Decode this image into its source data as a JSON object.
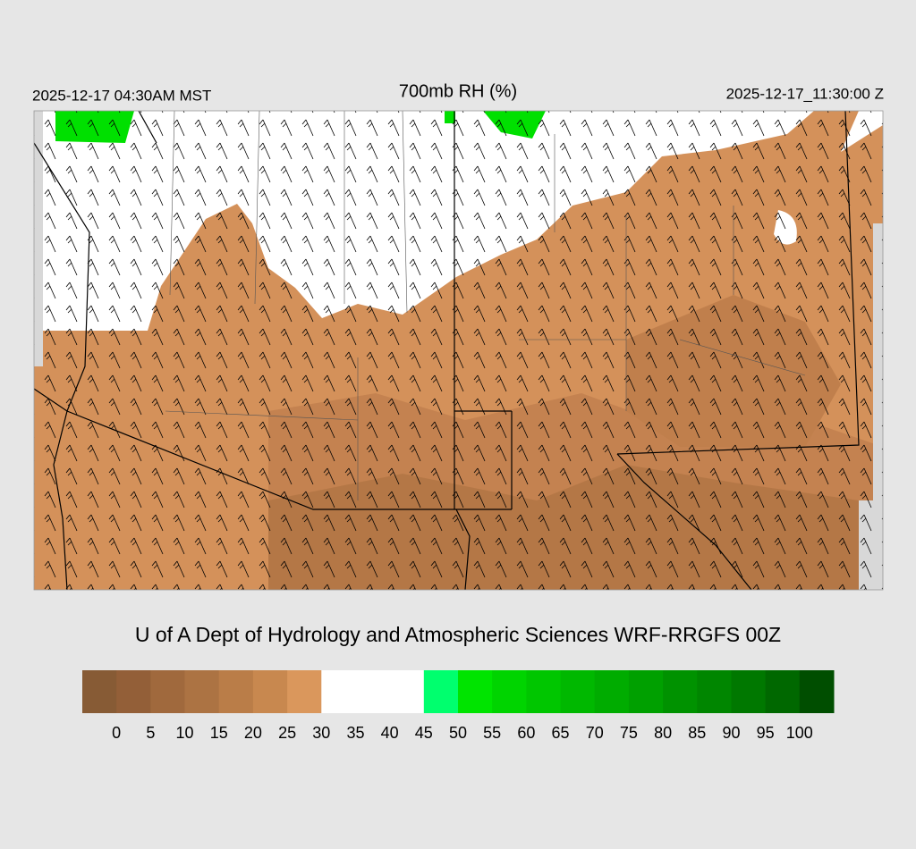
{
  "header": {
    "left": "2025-12-17 04:30AM MST",
    "title": "700mb RH (%)",
    "right": "2025-12-17_11:30:00 Z"
  },
  "credit": "U of A Dept of Hydrology and Atmospheric Sciences WRF-RRGFS 00Z",
  "colorbar": {
    "labels": [
      0,
      5,
      10,
      15,
      20,
      25,
      30,
      35,
      40,
      45,
      50,
      55,
      60,
      65,
      70,
      75,
      80,
      85,
      90,
      95,
      100
    ],
    "colors": [
      "#875b35",
      "#935f38",
      "#a0693d",
      "#ac7343",
      "#ba7d48",
      "#c8884f",
      "#da975c",
      "#ffffff",
      "#ffffff",
      "#ffffff",
      "#00ff6e",
      "#00e400",
      "#00d400",
      "#00c600",
      "#00b800",
      "#00ac00",
      "#00a000",
      "#009200",
      "#008600",
      "#007800",
      "#006800",
      "#004e00"
    ]
  }
}
